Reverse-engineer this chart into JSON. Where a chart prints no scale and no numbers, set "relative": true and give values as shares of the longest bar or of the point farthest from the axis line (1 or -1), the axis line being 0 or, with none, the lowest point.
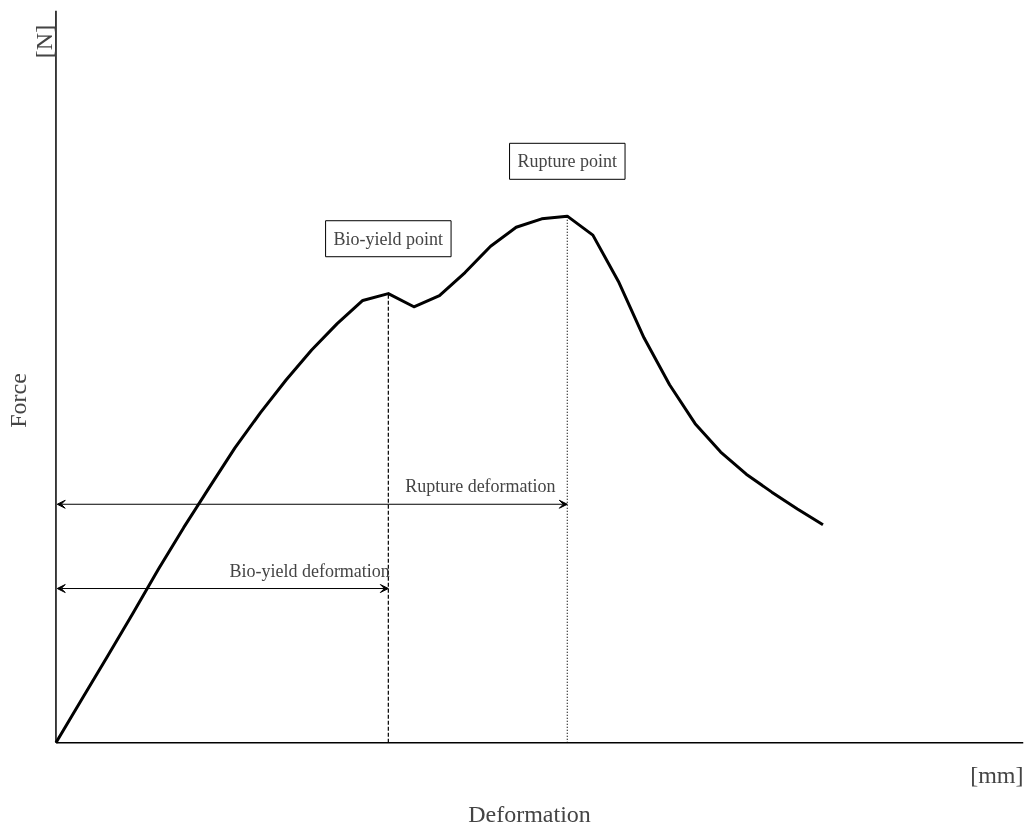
{
  "chart_data": {
    "type": "line",
    "relative": true,
    "xlabel": "Deformation",
    "ylabel": "Force",
    "color": "#000000",
    "categories": [
      null,
      null,
      null,
      null,
      null,
      null,
      null,
      null,
      null,
      null,
      null,
      null,
      null,
      null,
      null,
      null,
      null,
      null,
      null,
      null,
      null,
      null,
      null,
      null,
      null,
      null,
      null,
      null,
      null,
      null,
      null
    ],
    "values": [
      0,
      0.082,
      0.163,
      0.245,
      0.329,
      0.409,
      0.485,
      0.56,
      0.627,
      0.689,
      0.746,
      0.796,
      0.84,
      0.853,
      0.828,
      0.849,
      0.893,
      0.943,
      0.979,
      0.995,
      1.0,
      0.964,
      0.876,
      0.769,
      0.68,
      0.606,
      0.552,
      0.51,
      0.476,
      0.444,
      0.414
    ],
    "annotations": [
      "Bio-yield point",
      "Rupture point",
      "Rupture deformation",
      "Bio-yield  deformation",
      "[mm]",
      "[N]"
    ]
  }
}
